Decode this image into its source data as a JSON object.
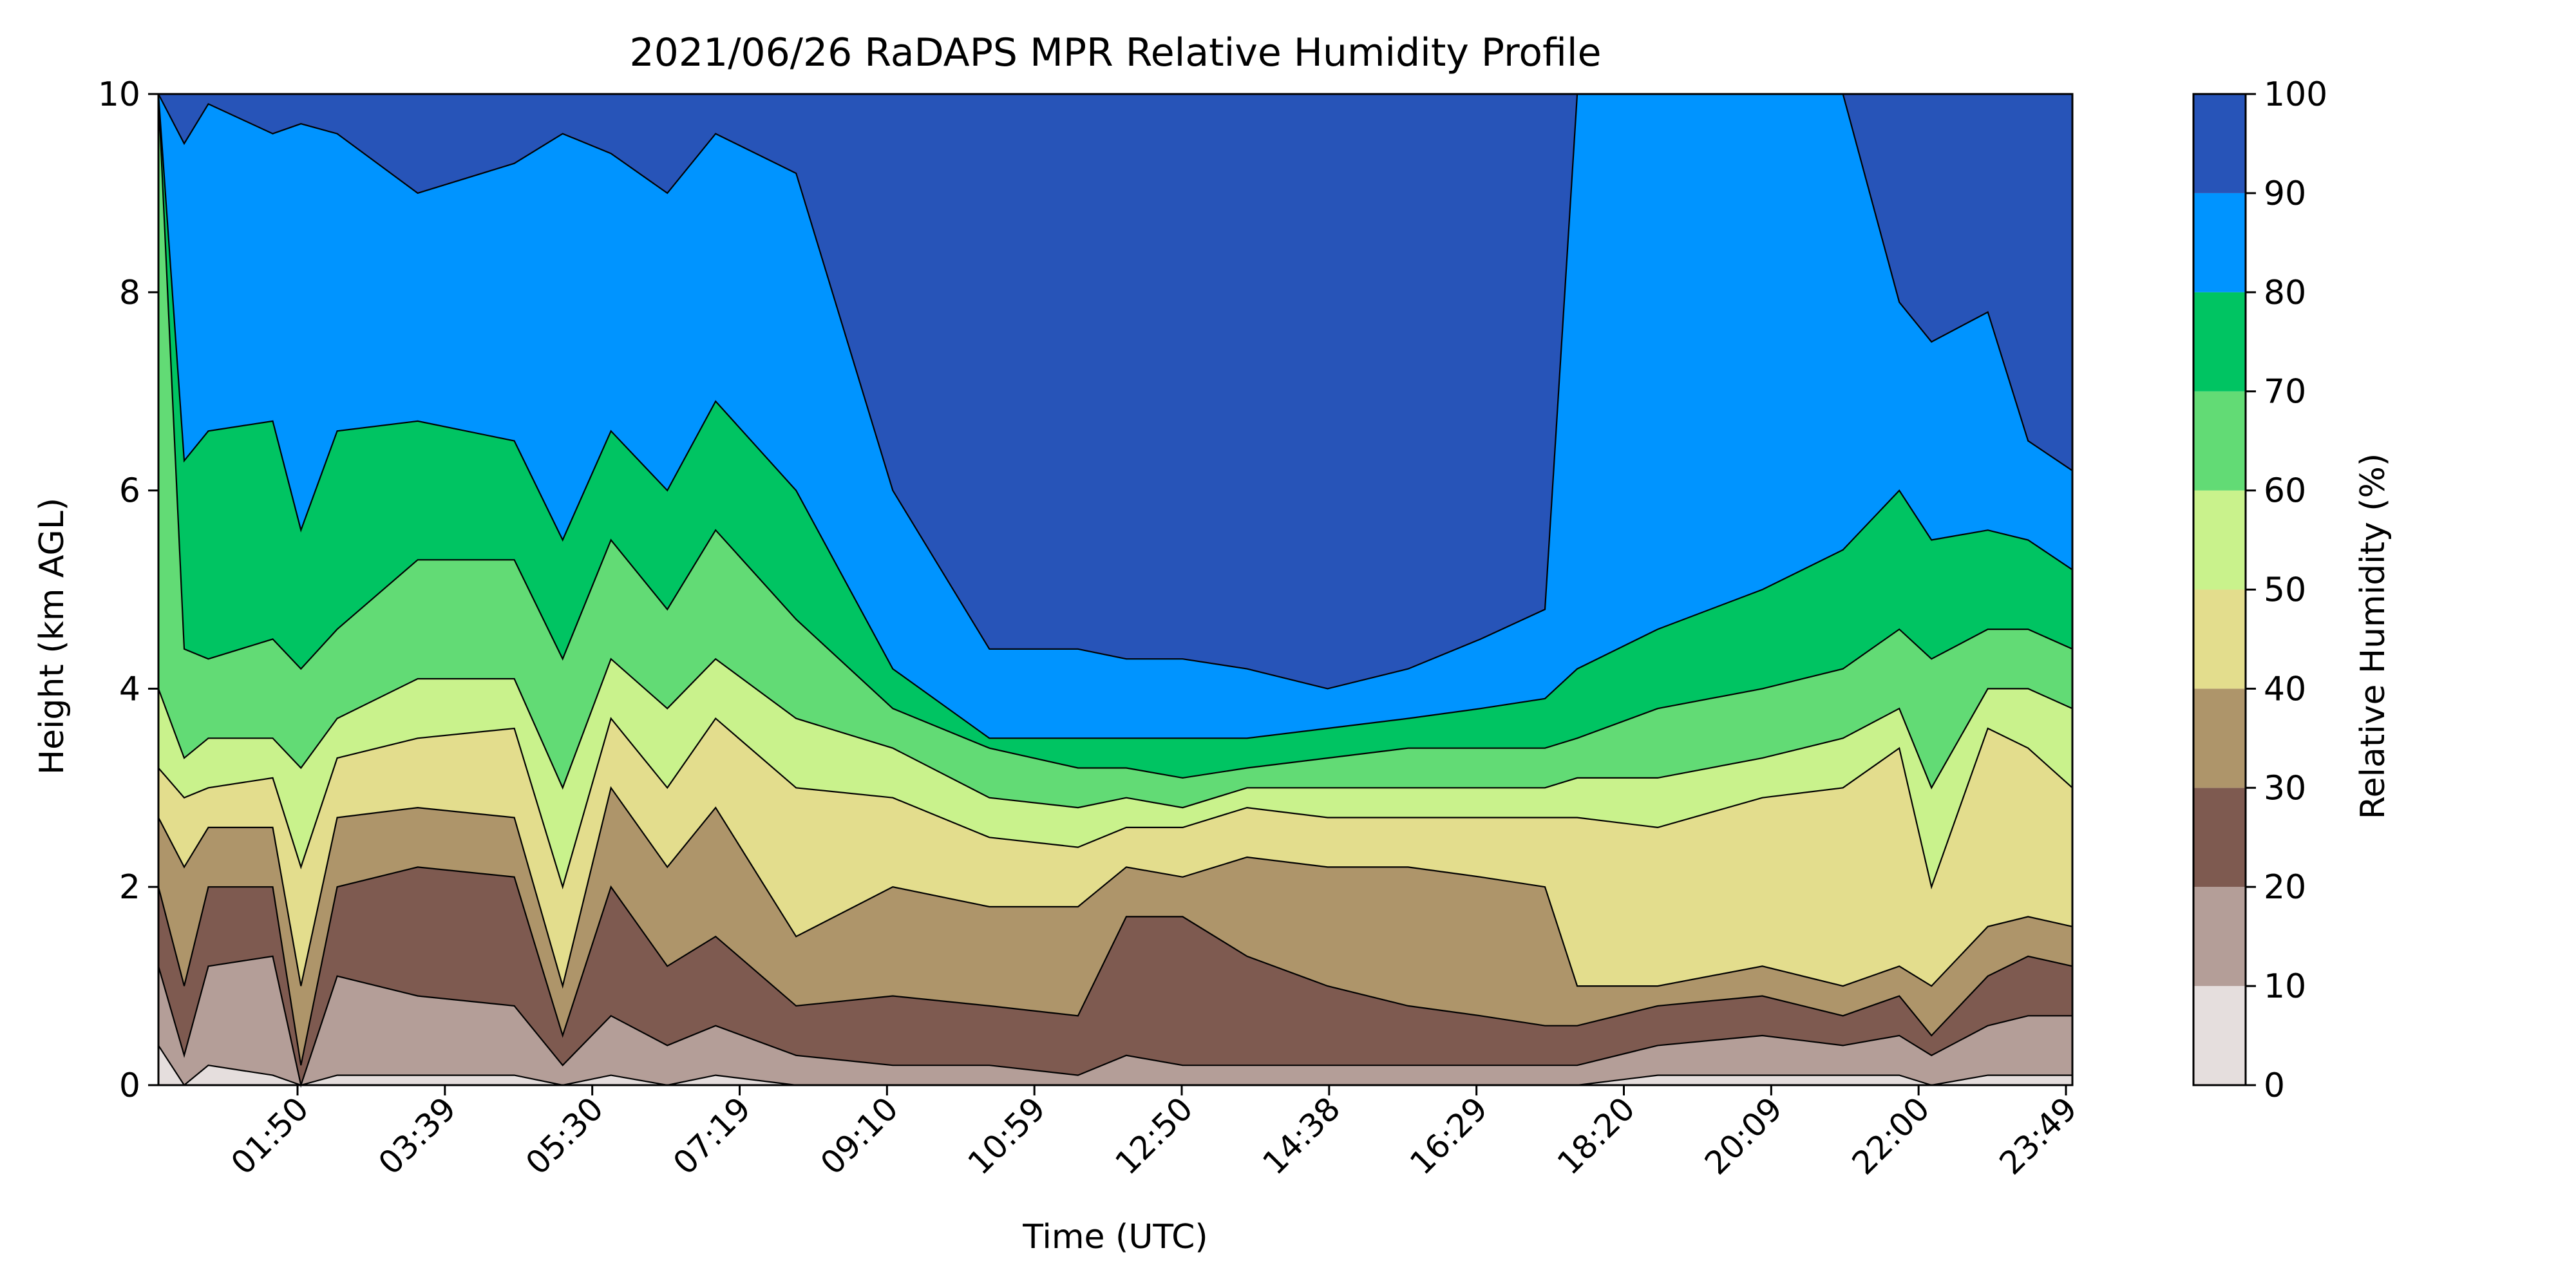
{
  "chart_data": {
    "type": "heatmap",
    "subtype": "filled-contour",
    "title": "2021/06/26 RaDAPS MPR Relative Humidity Profile",
    "xlabel": "Time (UTC)",
    "ylabel": "Height (km AGL)",
    "x_ticks": [
      "01:50",
      "03:39",
      "05:30",
      "07:19",
      "09:10",
      "10:59",
      "12:50",
      "14:38",
      "16:29",
      "18:20",
      "20:09",
      "22:00",
      "23:49"
    ],
    "y_ticks": [
      0,
      2,
      4,
      6,
      8,
      10
    ],
    "ylim": [
      0,
      10
    ],
    "xlim_hours": [
      0.08,
      23.85
    ],
    "colorbar": {
      "label": "Relative Humidity (%)",
      "ticks": [
        0,
        10,
        20,
        30,
        40,
        50,
        60,
        70,
        80,
        90,
        100
      ],
      "colors": [
        "#e5dedd",
        "#b49e98",
        "#7e5a50",
        "#ae956a",
        "#e3dd8d",
        "#c9f28c",
        "#62db75",
        "#00c462",
        "#0094ff",
        "#2754b8"
      ]
    },
    "profiles": [
      {
        "t": 0.08,
        "boundaries": [
          0.0,
          0.4,
          1.2,
          2.0,
          2.7,
          3.2,
          4.0,
          10.0,
          10.0,
          10.0
        ]
      },
      {
        "t": 0.4,
        "boundaries": [
          0.0,
          0.0,
          0.3,
          1.0,
          2.2,
          2.9,
          3.3,
          4.4,
          6.3,
          9.5
        ]
      },
      {
        "t": 0.7,
        "boundaries": [
          0.0,
          0.2,
          1.2,
          2.0,
          2.6,
          3.0,
          3.5,
          4.3,
          6.6,
          9.9
        ]
      },
      {
        "t": 1.5,
        "boundaries": [
          0.0,
          0.1,
          1.3,
          2.0,
          2.6,
          3.1,
          3.5,
          4.5,
          6.7,
          9.6
        ]
      },
      {
        "t": 1.85,
        "boundaries": [
          0.0,
          0.0,
          0.0,
          0.2,
          1.0,
          2.2,
          3.2,
          4.2,
          5.6,
          9.7
        ]
      },
      {
        "t": 2.3,
        "boundaries": [
          0.0,
          0.1,
          1.1,
          2.0,
          2.7,
          3.3,
          3.7,
          4.6,
          6.6,
          9.6
        ]
      },
      {
        "t": 3.3,
        "boundaries": [
          0.0,
          0.1,
          0.9,
          2.2,
          2.8,
          3.5,
          4.1,
          5.3,
          6.7,
          9.0
        ]
      },
      {
        "t": 4.5,
        "boundaries": [
          0.0,
          0.1,
          0.8,
          2.1,
          2.7,
          3.6,
          4.1,
          5.3,
          6.5,
          9.3
        ]
      },
      {
        "t": 5.1,
        "boundaries": [
          0.0,
          0.0,
          0.2,
          0.5,
          1.0,
          2.0,
          3.0,
          4.3,
          5.5,
          9.6
        ]
      },
      {
        "t": 5.7,
        "boundaries": [
          0.0,
          0.1,
          0.7,
          2.0,
          3.0,
          3.7,
          4.3,
          5.5,
          6.6,
          9.4
        ]
      },
      {
        "t": 6.4,
        "boundaries": [
          0.0,
          0.0,
          0.4,
          1.2,
          2.2,
          3.0,
          3.8,
          4.8,
          6.0,
          9.0
        ]
      },
      {
        "t": 7.0,
        "boundaries": [
          0.0,
          0.1,
          0.6,
          1.5,
          2.8,
          3.7,
          4.3,
          5.6,
          6.9,
          9.6
        ]
      },
      {
        "t": 8.0,
        "boundaries": [
          0.0,
          0.0,
          0.3,
          0.8,
          1.5,
          3.0,
          3.7,
          4.7,
          6.0,
          9.2
        ]
      },
      {
        "t": 9.2,
        "boundaries": [
          0.0,
          0.0,
          0.2,
          0.9,
          2.0,
          2.9,
          3.4,
          3.8,
          4.2,
          6.0
        ]
      },
      {
        "t": 10.4,
        "boundaries": [
          0.0,
          0.0,
          0.2,
          0.8,
          1.8,
          2.5,
          2.9,
          3.4,
          3.5,
          4.4
        ]
      },
      {
        "t": 11.5,
        "boundaries": [
          0.0,
          0.0,
          0.1,
          0.7,
          1.8,
          2.4,
          2.8,
          3.2,
          3.5,
          4.4
        ]
      },
      {
        "t": 12.1,
        "boundaries": [
          0.0,
          0.0,
          0.3,
          1.7,
          2.2,
          2.6,
          2.9,
          3.2,
          3.5,
          4.3
        ]
      },
      {
        "t": 12.8,
        "boundaries": [
          0.0,
          0.0,
          0.2,
          1.7,
          2.1,
          2.6,
          2.8,
          3.1,
          3.5,
          4.3
        ]
      },
      {
        "t": 13.6,
        "boundaries": [
          0.0,
          0.0,
          0.2,
          1.3,
          2.3,
          2.8,
          3.0,
          3.2,
          3.5,
          4.2
        ]
      },
      {
        "t": 14.6,
        "boundaries": [
          0.0,
          0.0,
          0.2,
          1.0,
          2.2,
          2.7,
          3.0,
          3.3,
          3.6,
          4.0
        ]
      },
      {
        "t": 15.6,
        "boundaries": [
          0.0,
          0.0,
          0.2,
          0.8,
          2.2,
          2.7,
          3.0,
          3.4,
          3.7,
          4.2
        ]
      },
      {
        "t": 16.5,
        "boundaries": [
          0.0,
          0.0,
          0.2,
          0.7,
          2.1,
          2.7,
          3.0,
          3.4,
          3.8,
          4.5
        ]
      },
      {
        "t": 17.3,
        "boundaries": [
          0.0,
          0.0,
          0.2,
          0.6,
          2.0,
          2.7,
          3.0,
          3.4,
          3.9,
          4.8
        ]
      },
      {
        "t": 17.7,
        "boundaries": [
          0.0,
          0.0,
          0.2,
          0.6,
          1.0,
          2.7,
          3.1,
          3.5,
          4.2,
          10.0
        ]
      },
      {
        "t": 18.7,
        "boundaries": [
          0.0,
          0.1,
          0.4,
          0.8,
          1.0,
          2.6,
          3.1,
          3.8,
          4.6,
          10.0
        ]
      },
      {
        "t": 20.0,
        "boundaries": [
          0.0,
          0.1,
          0.5,
          0.9,
          1.2,
          2.9,
          3.3,
          4.0,
          5.0,
          10.0
        ]
      },
      {
        "t": 21.0,
        "boundaries": [
          0.0,
          0.1,
          0.4,
          0.7,
          1.0,
          3.0,
          3.5,
          4.2,
          5.4,
          10.0
        ]
      },
      {
        "t": 21.7,
        "boundaries": [
          0.0,
          0.1,
          0.5,
          0.9,
          1.2,
          3.4,
          3.8,
          4.6,
          6.0,
          7.9
        ]
      },
      {
        "t": 22.1,
        "boundaries": [
          0.0,
          0.0,
          0.3,
          0.5,
          1.0,
          2.0,
          3.0,
          4.3,
          5.5,
          7.5
        ]
      },
      {
        "t": 22.8,
        "boundaries": [
          0.0,
          0.1,
          0.6,
          1.1,
          1.6,
          3.6,
          4.0,
          4.6,
          5.6,
          7.8
        ]
      },
      {
        "t": 23.3,
        "boundaries": [
          0.0,
          0.1,
          0.7,
          1.3,
          1.7,
          3.4,
          4.0,
          4.6,
          5.5,
          6.5
        ]
      },
      {
        "t": 23.85,
        "boundaries": [
          0.0,
          0.1,
          0.7,
          1.2,
          1.6,
          3.0,
          3.8,
          4.4,
          5.2,
          6.2
        ]
      }
    ]
  }
}
